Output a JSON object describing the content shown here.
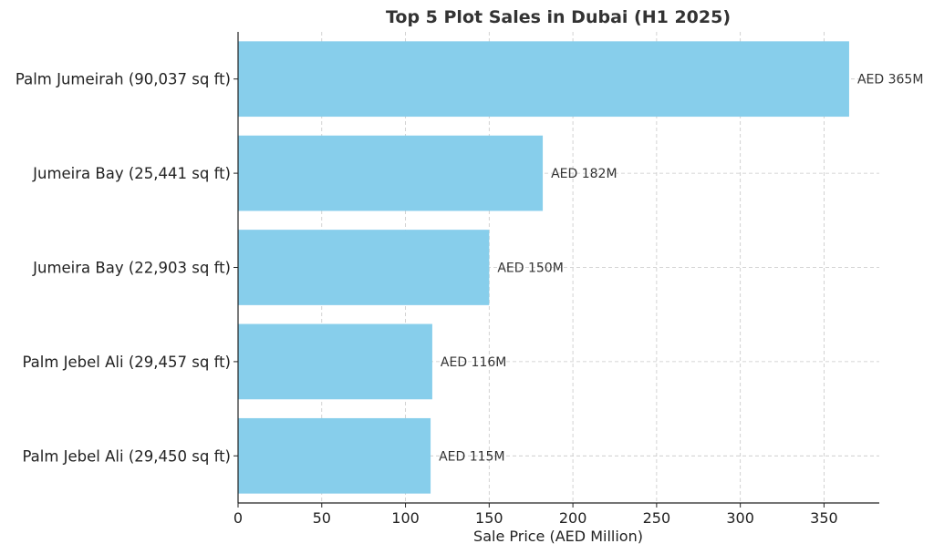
{
  "chart_data": {
    "type": "bar",
    "orientation": "horizontal",
    "title": "Top 5 Plot Sales in Dubai (H1 2025)",
    "xlabel": "Sale Price (AED Million)",
    "ylabel": "",
    "categories": [
      "Palm Jumeirah (90,037 sq ft)",
      "Jumeira Bay (25,441 sq ft)",
      "Jumeira Bay (22,903 sq ft)",
      "Palm Jebel Ali (29,457 sq ft)",
      "Palm Jebel Ali (29,450 sq ft)"
    ],
    "values": [
      365,
      182,
      150,
      116,
      115
    ],
    "data_labels": [
      "AED 365M",
      "AED 182M",
      "AED 150M",
      "AED 116M",
      "AED 115M"
    ],
    "xlim": [
      0,
      383
    ],
    "xticks": [
      0,
      50,
      100,
      150,
      200,
      250,
      300,
      350
    ],
    "grid": true,
    "legend": "none",
    "colors": {
      "bar": "#87ceeb",
      "axis": "#222222",
      "grid": "#c8c8c8"
    }
  }
}
